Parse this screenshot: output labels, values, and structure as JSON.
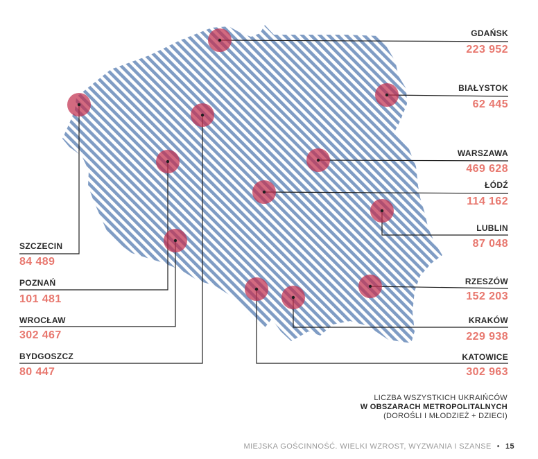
{
  "colors": {
    "map_stripe": "#7f9cc4",
    "marker": "#c2304f",
    "leader": "#1f1f1f",
    "value": "#e8786f"
  },
  "cities": [
    {
      "name": "GDAŃSK",
      "value": "223 952"
    },
    {
      "name": "BIAŁYSTOK",
      "value": "62 445"
    },
    {
      "name": "WARSZAWA",
      "value": "469 628"
    },
    {
      "name": "ŁÓDŹ",
      "value": "114 162"
    },
    {
      "name": "LUBLIN",
      "value": "87 048"
    },
    {
      "name": "RZESZÓW",
      "value": "152 203"
    },
    {
      "name": "KRAKÓW",
      "value": "229 938"
    },
    {
      "name": "KATOWICE",
      "value": "302 963"
    },
    {
      "name": "SZCZECIN",
      "value": "84 489"
    },
    {
      "name": "POZNAŃ",
      "value": "101 481"
    },
    {
      "name": "WROCŁAW",
      "value": "302 467"
    },
    {
      "name": "BYDGOSZCZ",
      "value": "80 447"
    }
  ],
  "caption": {
    "line1": "LICZBA WSZYSTKICH UKRAIŃCÓW",
    "line2": "W OBSZARACH METROPOLITALNYCH",
    "line3": "(DOROŚLI I MŁODZIEŻ + DZIECI)"
  },
  "footer": {
    "text": "MIEJSKA GOŚCINNOŚĆ. WIELKI WZROST, WYZWANIA I SZANSE",
    "bullet": "•",
    "page": "15"
  }
}
